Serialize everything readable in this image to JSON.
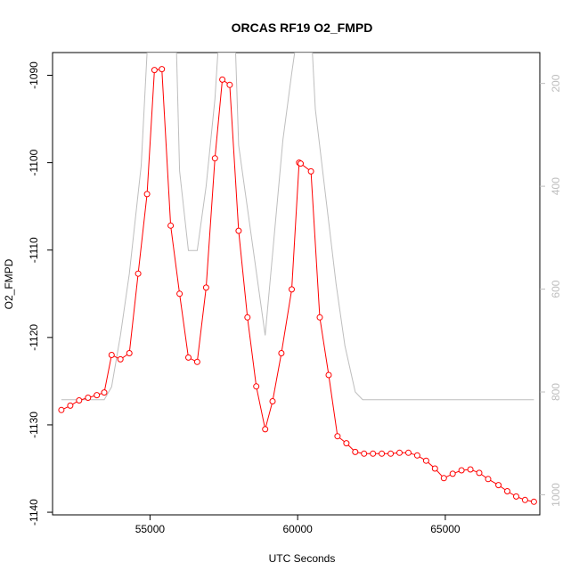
{
  "chart_data": {
    "type": "line",
    "title": "ORCAS RF19 O2_FMPD",
    "xlabel": "UTC Seconds",
    "ylabel": "O2_FMPD",
    "xlim": [
      51700,
      68200
    ],
    "ylim": [
      -1140.3,
      -1087.4
    ],
    "y2lim": [
      1039,
      140
    ],
    "x_ticks": [
      55000,
      60000,
      65000
    ],
    "x_tick_labels": [
      "55000",
      "60000",
      "65000"
    ],
    "y_ticks": [
      -1090,
      -1100,
      -1110,
      -1120,
      -1130,
      -1140
    ],
    "y_tick_labels": [
      "-1090",
      "-1100",
      "-1110",
      "-1120",
      "-1130",
      "-1140"
    ],
    "y2_ticks": [
      200,
      400,
      600,
      800,
      1000
    ],
    "y2_tick_labels": [
      "200",
      "400",
      "600",
      "800",
      "1000"
    ],
    "grid": false,
    "series": [
      {
        "axis": "left",
        "style": "line-with-open-circles",
        "color": "#ff0000",
        "x": [
          52000,
          52300,
          52600,
          52900,
          53200,
          53450,
          53700,
          54000,
          54300,
          54600,
          54900,
          55150,
          55400,
          55700,
          56000,
          56300,
          56600,
          56900,
          57200,
          57450,
          57700,
          58000,
          58300,
          58600,
          58900,
          59150,
          59450,
          59800,
          60050,
          60100,
          60450,
          60750,
          61050,
          61350,
          61650,
          61950,
          62250,
          62550,
          62850,
          63150,
          63450,
          63750,
          64050,
          64350,
          64650,
          64950,
          65250,
          65550,
          65850,
          66150,
          66450,
          66800,
          67100,
          67400,
          67700,
          68000
        ],
        "y": [
          -1128.3,
          -1127.8,
          -1127.2,
          -1126.9,
          -1126.6,
          -1126.3,
          -1122.0,
          -1122.5,
          -1121.8,
          -1112.7,
          -1103.6,
          -1089.4,
          -1089.3,
          -1107.2,
          -1115.0,
          -1122.3,
          -1122.8,
          -1114.3,
          -1099.5,
          -1090.5,
          -1091.1,
          -1107.8,
          -1117.7,
          -1125.6,
          -1130.5,
          -1127.3,
          -1121.8,
          -1114.5,
          -1100.0,
          -1100.1,
          -1101.0,
          -1117.7,
          -1124.3,
          -1131.3,
          -1132.1,
          -1133.1,
          -1133.3,
          -1133.3,
          -1133.3,
          -1133.3,
          -1133.2,
          -1133.2,
          -1133.5,
          -1134.1,
          -1135.0,
          -1136.1,
          -1135.6,
          -1135.2,
          -1135.1,
          -1135.5,
          -1136.2,
          -1136.9,
          -1137.6,
          -1138.2,
          -1138.6,
          -1138.8
        ]
      },
      {
        "axis": "right",
        "style": "line",
        "color": "#bebebe",
        "x": [
          52000,
          52600,
          53450,
          53700,
          54000,
          54300,
          54700,
          54900,
          55000,
          55900,
          56000,
          56300,
          56600,
          56900,
          57200,
          57300,
          57900,
          58000,
          58900,
          59500,
          59800,
          59900,
          60500,
          60600,
          61300,
          61600,
          61950,
          62200,
          68000
        ],
        "y": [
          815,
          815,
          815,
          790,
          690,
          570,
          360,
          140,
          140,
          140,
          370,
          525,
          525,
          400,
          230,
          140,
          140,
          320,
          690,
          310,
          180,
          140,
          140,
          250,
          590,
          710,
          800,
          815,
          815
        ]
      }
    ]
  }
}
